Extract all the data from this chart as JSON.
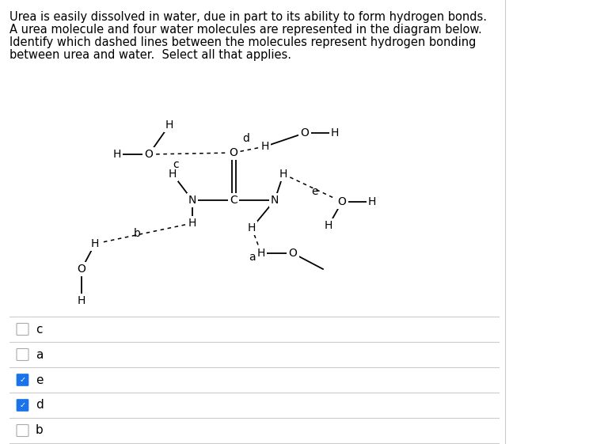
{
  "title_lines": [
    "Urea is easily dissolved in water, due in part to its ability to form hydrogen bonds.",
    "A urea molecule and four water molecules are represented in the diagram below.",
    "Identify which dashed lines between the molecules represent hydrogen bonding",
    "between urea and water.  Select all that applies."
  ],
  "title_fontsize": 10.5,
  "fig_width": 7.44,
  "fig_height": 5.61,
  "background_color": "#ffffff",
  "text_color": "#000000",
  "checkbox_color_checked": "#1a73e8",
  "options": [
    {
      "label": "c",
      "checked": false
    },
    {
      "label": "a",
      "checked": false
    },
    {
      "label": "e",
      "checked": true
    },
    {
      "label": "d",
      "checked": true
    },
    {
      "label": "b",
      "checked": false
    }
  ],
  "divider_color": "#cccccc"
}
